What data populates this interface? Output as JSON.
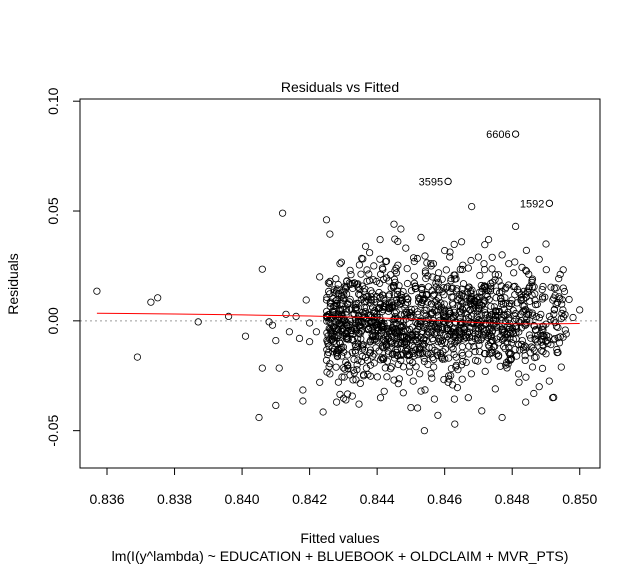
{
  "chart_data": {
    "type": "scatter",
    "title": "Residuals vs Fitted",
    "xlabel": "Fitted values",
    "ylabel": "Residuals",
    "subtitle": "lm(I(y^lambda) ~ EDUCATION + BLUEBOOK + OLDCLAIM + MVR_PTS)",
    "xlim": [
      0.8352,
      0.8506
    ],
    "ylim": [
      -0.067,
      0.101
    ],
    "x_ticks": [
      {
        "value": 0.836,
        "label": "0.836"
      },
      {
        "value": 0.838,
        "label": "0.838"
      },
      {
        "value": 0.84,
        "label": "0.840"
      },
      {
        "value": 0.842,
        "label": "0.842"
      },
      {
        "value": 0.844,
        "label": "0.844"
      },
      {
        "value": 0.846,
        "label": "0.846"
      },
      {
        "value": 0.848,
        "label": "0.848"
      },
      {
        "value": 0.85,
        "label": "0.850"
      }
    ],
    "y_ticks": [
      {
        "value": -0.05,
        "label": "-0.05"
      },
      {
        "value": 0.0,
        "label": "0.00"
      },
      {
        "value": 0.05,
        "label": "0.05"
      },
      {
        "value": 0.1,
        "label": "0.10"
      }
    ],
    "reference_line_y": 0,
    "grid": false,
    "points": [
      [
        0.8357,
        0.0135
      ],
      [
        0.8369,
        -0.0165
      ],
      [
        0.8373,
        0.0085
      ],
      [
        0.8375,
        0.0105
      ],
      [
        0.8387,
        -0.0005
      ],
      [
        0.8396,
        0.002
      ],
      [
        0.8401,
        -0.007
      ],
      [
        0.8405,
        -0.044
      ],
      [
        0.8406,
        0.0235
      ],
      [
        0.8406,
        -0.0215
      ],
      [
        0.8408,
        -0.0005
      ],
      [
        0.8409,
        -0.002
      ],
      [
        0.841,
        -0.009
      ],
      [
        0.841,
        -0.0385
      ],
      [
        0.8411,
        -0.0215
      ],
      [
        0.8412,
        0.049
      ],
      [
        0.8413,
        0.003
      ],
      [
        0.8414,
        -0.005
      ],
      [
        0.8416,
        0.002
      ],
      [
        0.8417,
        -0.008
      ],
      [
        0.8418,
        -0.0315
      ],
      [
        0.8418,
        -0.0365
      ],
      [
        0.8419,
        0.0095
      ],
      [
        0.842,
        -0.001
      ],
      [
        0.842,
        -0.0095
      ],
      [
        0.8422,
        -0.005
      ],
      [
        0.8423,
        -0.028
      ],
      [
        0.8423,
        0.02
      ],
      [
        0.8424,
        -0.0415
      ],
      [
        0.8425,
        0.046
      ],
      [
        0.8425,
        0.0095
      ],
      [
        0.8426,
        -0.0195
      ],
      [
        0.8426,
        0.0395
      ],
      [
        0.8427,
        0.004
      ],
      [
        0.8428,
        -0.037
      ],
      [
        0.8429,
        0.026
      ],
      [
        0.8429,
        -0.0335
      ],
      [
        0.843,
        -0.012
      ],
      [
        0.8431,
        0.0155
      ],
      [
        0.8431,
        -0.006
      ],
      [
        0.8432,
        0.023
      ],
      [
        0.8433,
        -0.0225
      ],
      [
        0.8434,
        0.005
      ],
      [
        0.8435,
        -0.0285
      ],
      [
        0.8436,
        0.0105
      ],
      [
        0.8436,
        -0.025
      ],
      [
        0.8437,
        0.018
      ],
      [
        0.8438,
        -0.0145
      ],
      [
        0.8439,
        0.025
      ],
      [
        0.844,
        -0.003
      ],
      [
        0.8441,
        -0.035
      ],
      [
        0.8442,
        0.0065
      ],
      [
        0.8443,
        -0.0085
      ],
      [
        0.8444,
        0.021
      ],
      [
        0.8445,
        -0.027
      ],
      [
        0.8445,
        0.044
      ],
      [
        0.8446,
        0.012
      ],
      [
        0.8447,
        -0.018
      ],
      [
        0.8448,
        -0.005
      ],
      [
        0.8449,
        0.017
      ],
      [
        0.845,
        -0.0395
      ],
      [
        0.8451,
        0.027
      ],
      [
        0.8451,
        -0.012
      ],
      [
        0.8452,
        0.003
      ],
      [
        0.8453,
        -0.032
      ],
      [
        0.8453,
        0.038
      ],
      [
        0.8454,
        -0.05
      ],
      [
        0.8455,
        0.0085
      ],
      [
        0.8456,
        -0.024
      ],
      [
        0.8456,
        0.025
      ],
      [
        0.8457,
        -0.006
      ],
      [
        0.8458,
        0.014
      ],
      [
        0.8458,
        -0.043
      ],
      [
        0.8459,
        -0.016
      ],
      [
        0.846,
        0.032
      ],
      [
        0.846,
        0.005
      ],
      [
        0.8461,
        -0.028
      ],
      [
        0.8461,
        0.0635
      ],
      [
        0.8462,
        -0.009
      ],
      [
        0.8463,
        0.019
      ],
      [
        0.8463,
        -0.047
      ],
      [
        0.8464,
        0.007
      ],
      [
        0.8465,
        -0.02
      ],
      [
        0.8465,
        0.036
      ],
      [
        0.8466,
        -0.003
      ],
      [
        0.8467,
        0.024
      ],
      [
        0.8467,
        -0.035
      ],
      [
        0.8468,
        0.011
      ],
      [
        0.8468,
        0.052
      ],
      [
        0.8469,
        -0.014
      ],
      [
        0.847,
        0.029
      ],
      [
        0.847,
        -0.006
      ],
      [
        0.8471,
        -0.041
      ],
      [
        0.8472,
        0.015
      ],
      [
        0.8472,
        -0.023
      ],
      [
        0.8473,
        0.037
      ],
      [
        0.8474,
        0.003
      ],
      [
        0.8475,
        -0.031
      ],
      [
        0.8475,
        0.021
      ],
      [
        0.8476,
        -0.01
      ],
      [
        0.8477,
        0.03
      ],
      [
        0.8477,
        -0.044
      ],
      [
        0.8478,
        0.008
      ],
      [
        0.8479,
        -0.018
      ],
      [
        0.8479,
        0.026
      ],
      [
        0.848,
        -0.005
      ],
      [
        0.8481,
        0.085
      ],
      [
        0.8481,
        0.043
      ],
      [
        0.8482,
        -0.028
      ],
      [
        0.8482,
        0.013
      ],
      [
        0.8483,
        -0.009
      ],
      [
        0.8484,
        0.023
      ],
      [
        0.8484,
        -0.037
      ],
      [
        0.8485,
        0.004
      ],
      [
        0.8486,
        -0.021
      ],
      [
        0.8486,
        0.019
      ],
      [
        0.8487,
        -0.004
      ],
      [
        0.8488,
        0.028
      ],
      [
        0.8488,
        -0.03
      ],
      [
        0.8489,
        0.01
      ],
      [
        0.849,
        -0.015
      ],
      [
        0.849,
        0.035
      ],
      [
        0.8491,
        0.0535
      ],
      [
        0.8491,
        0.002
      ],
      [
        0.8492,
        -0.035
      ],
      [
        0.8493,
        0.015
      ],
      [
        0.8494,
        -0.01
      ],
      [
        0.8495,
        0.005
      ],
      [
        0.8496,
        -0.006
      ],
      [
        0.8498,
        0.0015
      ],
      [
        0.85,
        0.005
      ]
    ],
    "dense_region": {
      "x_range": [
        0.8425,
        0.8497
      ],
      "y_center": 0.0,
      "y_spread": 0.013
    },
    "labeled_points": [
      {
        "label": "6606",
        "x": 0.8481,
        "y": 0.085
      },
      {
        "label": "3595",
        "x": 0.8461,
        "y": 0.0635
      },
      {
        "label": "1592",
        "x": 0.8491,
        "y": 0.0535
      }
    ],
    "smoother": {
      "color": "#ff0000",
      "x": [
        0.8357,
        0.838,
        0.84,
        0.842,
        0.844,
        0.845,
        0.846,
        0.847,
        0.848,
        0.849,
        0.85
      ],
      "y": [
        0.0035,
        0.0031,
        0.0027,
        0.0022,
        0.0014,
        0.0008,
        0.0,
        -0.0008,
        -0.0013,
        -0.0014,
        -0.0012
      ]
    }
  }
}
